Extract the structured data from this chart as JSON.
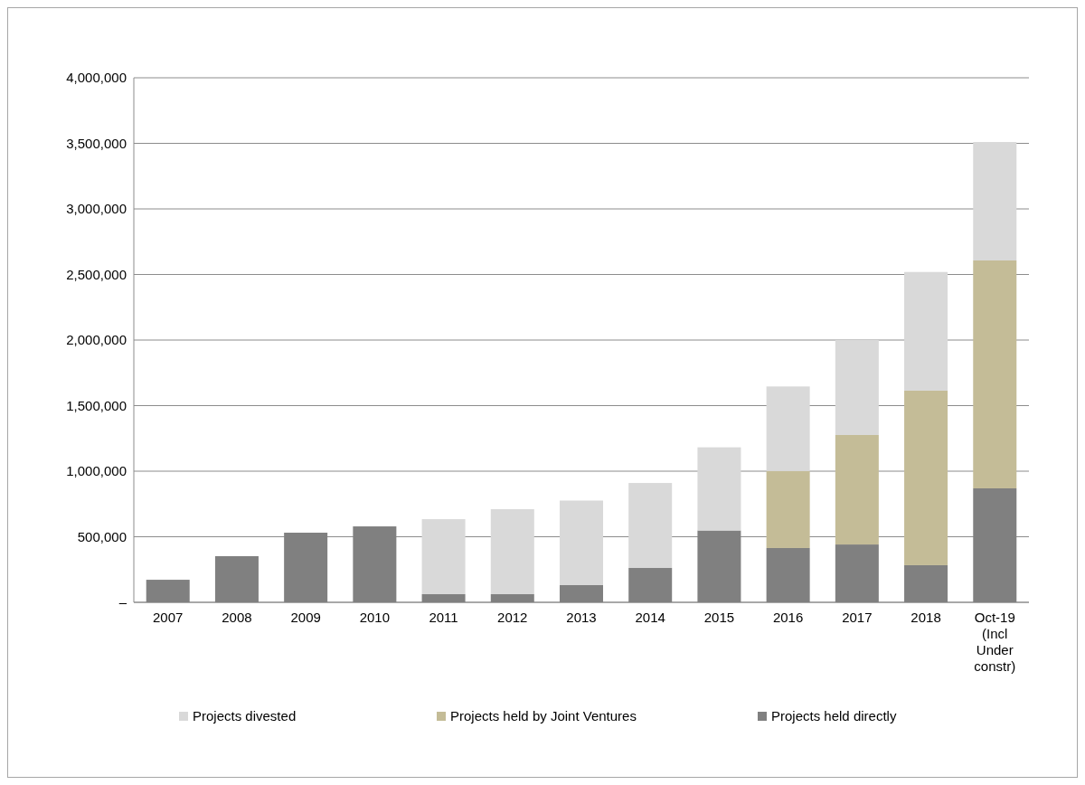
{
  "chart_data": {
    "type": "bar",
    "stacked": true,
    "categories": [
      "2007",
      "2008",
      "2009",
      "2010",
      "2011",
      "2012",
      "2013",
      "2014",
      "2015",
      "2016",
      "2017",
      "2018",
      "Oct-19 (Incl Under constr)"
    ],
    "series": [
      {
        "name": "Projects held directly",
        "color": "#808080",
        "values": [
          172000,
          352000,
          531000,
          579000,
          62000,
          62000,
          131000,
          262000,
          548000,
          414000,
          441000,
          283000,
          869000
        ]
      },
      {
        "name": "Projects held by Joint Ventures",
        "color": "#c4bc97",
        "values": [
          null,
          null,
          null,
          null,
          null,
          null,
          null,
          null,
          null,
          587000,
          835000,
          1331000,
          1738000
        ]
      },
      {
        "name": "Projects divested",
        "color": "#d9d9d9",
        "values": [
          null,
          null,
          null,
          null,
          572000,
          648000,
          645000,
          648000,
          634000,
          645000,
          724000,
          905000,
          903000
        ]
      }
    ],
    "ylim": [
      0,
      4000000
    ],
    "yticks": [
      {
        "value": 0,
        "label": "–"
      },
      {
        "value": 500000,
        "label": "500,000"
      },
      {
        "value": 1000000,
        "label": "1,000,000"
      },
      {
        "value": 1500000,
        "label": "1,500,000"
      },
      {
        "value": 2000000,
        "label": "2,000,000"
      },
      {
        "value": 2500000,
        "label": "2,500,000"
      },
      {
        "value": 3000000,
        "label": "3,000,000"
      },
      {
        "value": 3500000,
        "label": "3,500,000"
      },
      {
        "value": 4000000,
        "label": "4,000,000"
      }
    ],
    "grid": "y",
    "legend": "bottom"
  }
}
